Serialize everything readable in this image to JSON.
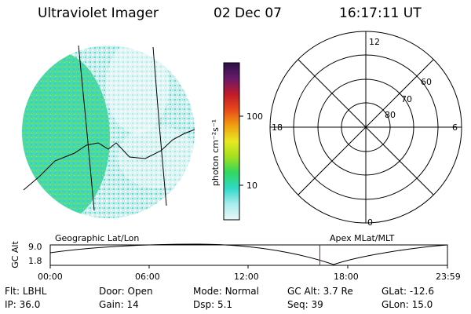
{
  "header": {
    "instrument": "Ultraviolet Imager",
    "date": "02 Dec 07",
    "time": "16:17:11 UT"
  },
  "colorbar": {
    "unit_label": "photon cm⁻²s⁻¹",
    "ticks": [
      "100",
      "10"
    ],
    "stops": [
      "#2a1046",
      "#6a1a6a",
      "#c01a2a",
      "#e84a1a",
      "#f0a010",
      "#e8e820",
      "#a0e020",
      "#30d860",
      "#30d8c8",
      "#a8ecec",
      "#eaf7f7"
    ]
  },
  "polar": {
    "mlt_labels": {
      "top": "12",
      "left": "18",
      "right": "6",
      "bottom": "0"
    },
    "lat_labels": [
      "60",
      "70",
      "80"
    ]
  },
  "track_plot": {
    "left_label": "Geographic Lat/Lon",
    "right_label": "Apex MLat/MLT",
    "y_label": "GC Alt",
    "y_ticks": [
      "9.0",
      "1.8"
    ],
    "x_ticks": [
      "00:00",
      "06:00",
      "12:00",
      "18:00",
      "23:59"
    ],
    "current_marker_hour": 16.29,
    "marker_color": "#d00000"
  },
  "info": {
    "row1": [
      {
        "label": "Flt:",
        "value": "LBHL"
      },
      {
        "label": "Door:",
        "value": "Open"
      },
      {
        "label": "Mode:",
        "value": "Normal"
      },
      {
        "label": "GC Alt:",
        "value": "3.7 Re"
      },
      {
        "label": "GLat:",
        "value": "-12.6"
      }
    ],
    "row2": [
      {
        "label": "IP:",
        "value": "36.0"
      },
      {
        "label": "Gain:",
        "value": "14"
      },
      {
        "label": "Dsp:",
        "value": "5.1"
      },
      {
        "label": "Seq:",
        "value": "39"
      },
      {
        "label": "GLon:",
        "value": "15.0"
      }
    ]
  }
}
